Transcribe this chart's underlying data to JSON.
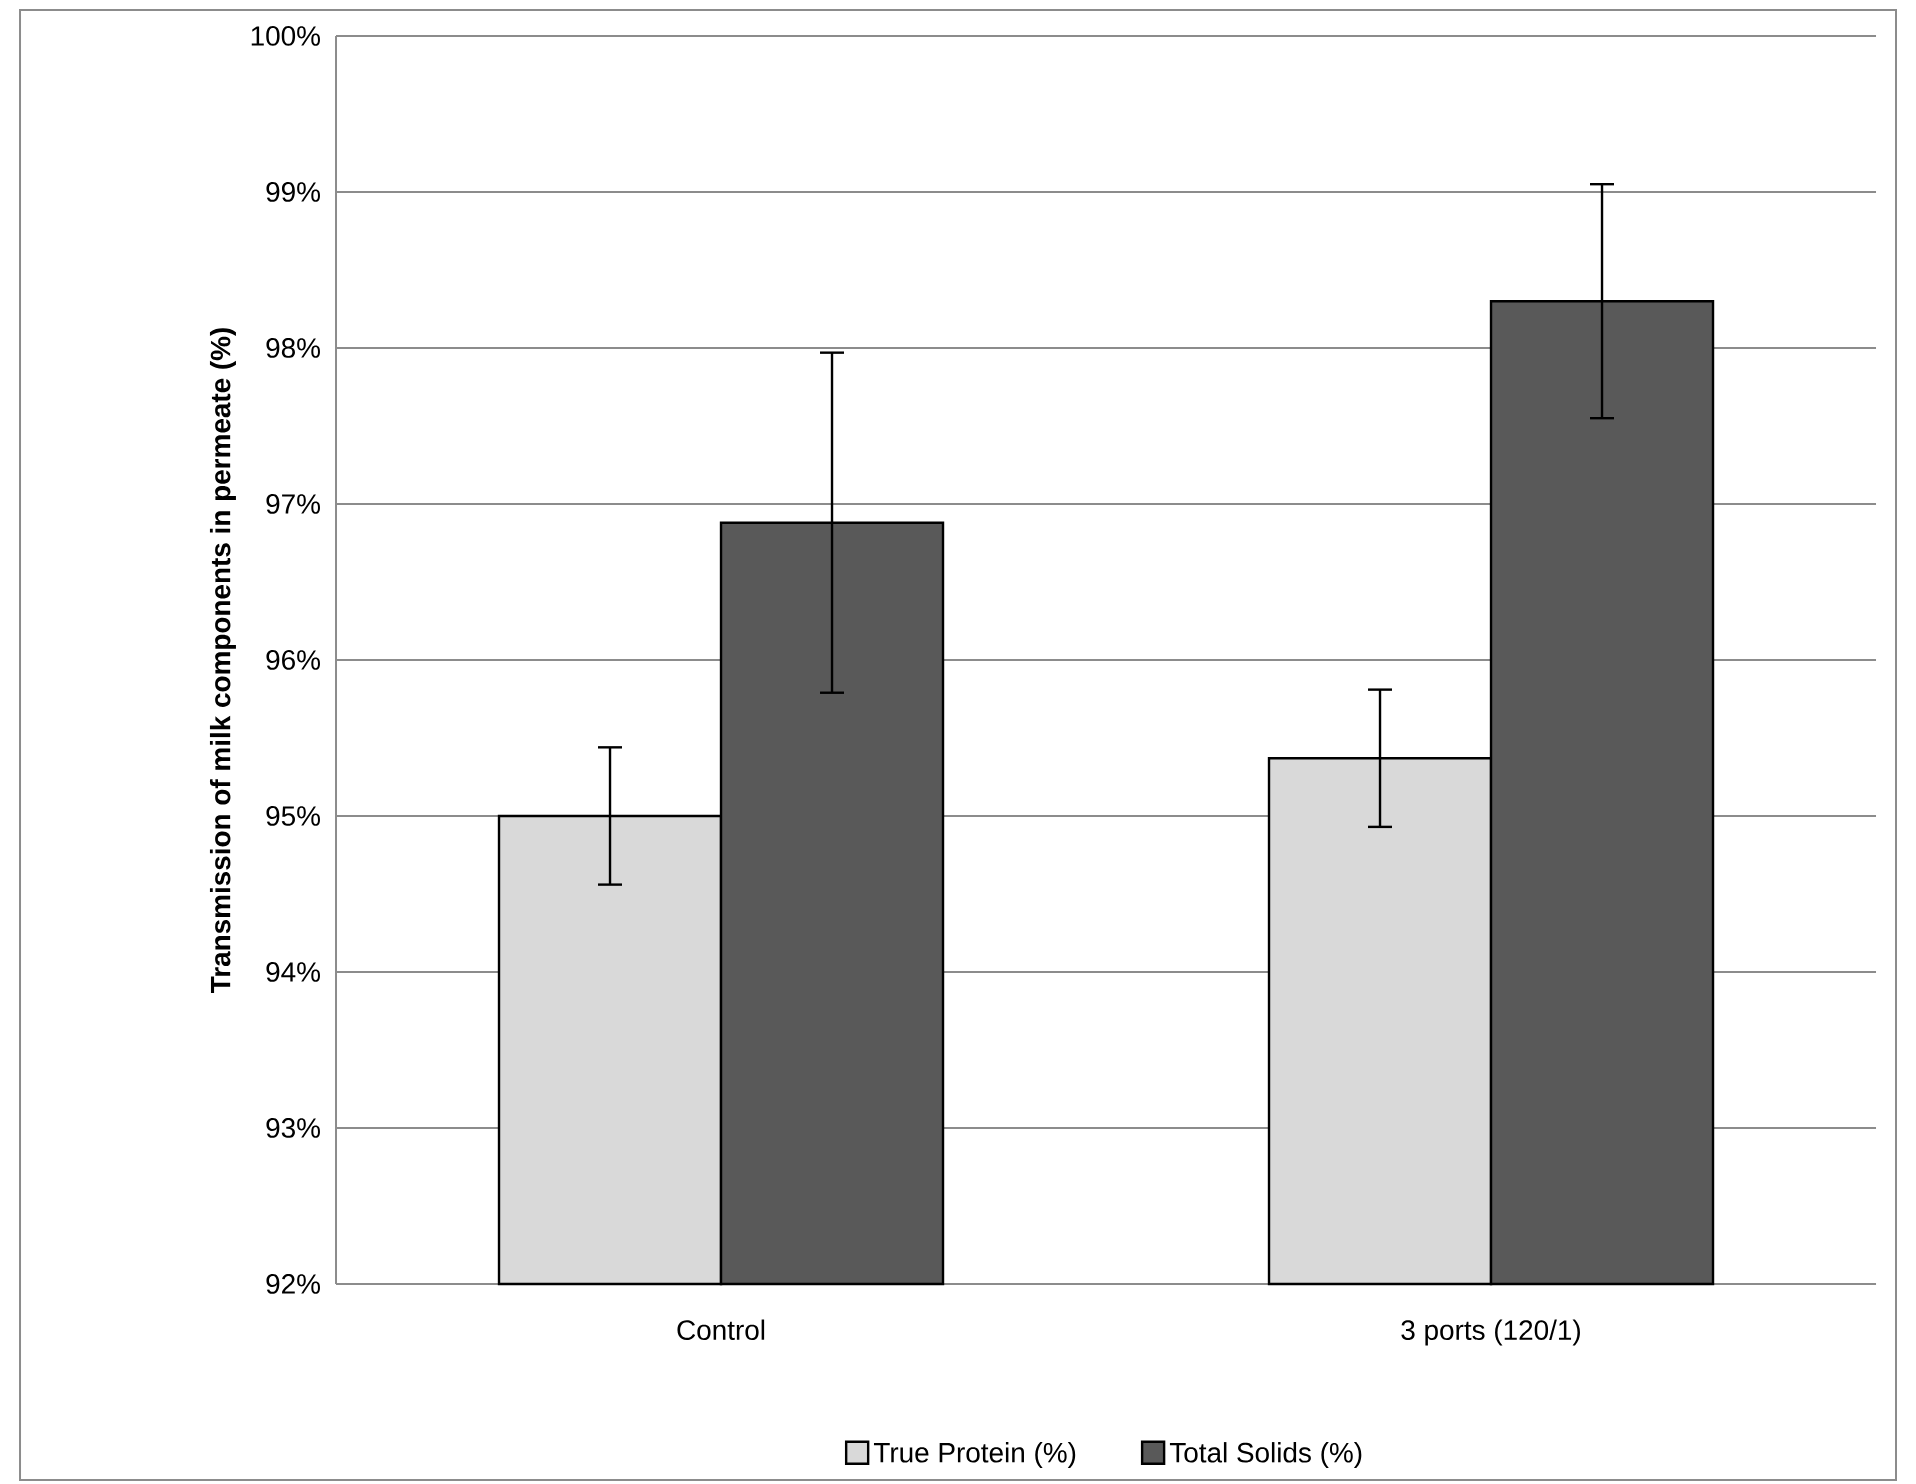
{
  "chart_data": {
    "type": "bar",
    "ylabel": "Transmission  of milk components in permeate (%)",
    "categories": [
      "Control",
      "3 ports (120/1)"
    ],
    "series": [
      {
        "name": "True Protein (%)",
        "color": "#d9d9d9",
        "values": [
          95.0,
          95.37
        ],
        "errors": [
          0.44,
          0.44
        ]
      },
      {
        "name": "Total Solids (%)",
        "color": "#595959",
        "values": [
          96.88,
          98.3
        ],
        "errors": [
          1.09,
          0.75
        ]
      }
    ],
    "ylim": [
      92,
      100
    ],
    "yticks": [
      {
        "value": 92,
        "label": "92%"
      },
      {
        "value": 93,
        "label": "93%"
      },
      {
        "value": 94,
        "label": "94%"
      },
      {
        "value": 95,
        "label": "95%"
      },
      {
        "value": 96,
        "label": "96%"
      },
      {
        "value": 97,
        "label": "97%"
      },
      {
        "value": 98,
        "label": "98%"
      },
      {
        "value": 99,
        "label": "99%"
      },
      {
        "value": 100,
        "label": "100%"
      }
    ],
    "grid": "y",
    "legend": "bottom"
  }
}
